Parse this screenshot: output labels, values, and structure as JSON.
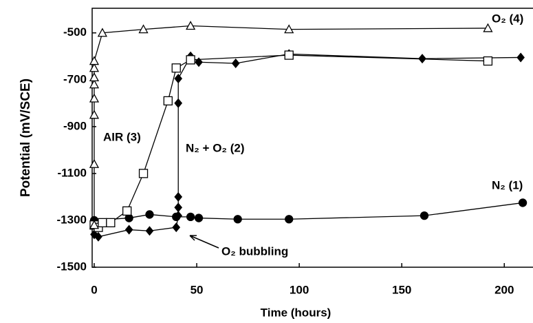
{
  "chart_data": {
    "type": "line",
    "x_label": "Time (hours)",
    "y_label": "Potential (mV/SCE)",
    "xlim": [
      -1,
      214
    ],
    "ylim": [
      -1500,
      -395
    ],
    "xticks": [
      0,
      50,
      100,
      150,
      200
    ],
    "yticks": [
      -500,
      -700,
      -900,
      -1100,
      -1300,
      -1500
    ],
    "series": [
      {
        "name": "N₂ (1)",
        "color": "#000000",
        "marker": "circle",
        "filled": true,
        "x": [
          0,
          17,
          27,
          40,
          47,
          51,
          70,
          95,
          161,
          209
        ],
        "values": [
          -1300,
          -1290,
          -1275,
          -1285,
          -1285,
          -1290,
          -1295,
          -1295,
          -1280,
          -1225
        ]
      },
      {
        "name": "N₂ + O₂ (2)",
        "color": "#000000",
        "marker": "diamond",
        "filled": true,
        "x": [
          0,
          2,
          17,
          27,
          40,
          41,
          41,
          41,
          41,
          41,
          47,
          51,
          69,
          95,
          160,
          208
        ],
        "values": [
          -1360,
          -1370,
          -1340,
          -1345,
          -1330,
          -1280,
          -1245,
          -1200,
          -800,
          -695,
          -600,
          -625,
          -630,
          -590,
          -610,
          -605
        ]
      },
      {
        "name": "AIR (3)",
        "color": "#000000",
        "marker": "square",
        "filled": false,
        "x": [
          0,
          2,
          4,
          8,
          16,
          24,
          36,
          40,
          47,
          95,
          192
        ],
        "values": [
          -1320,
          -1330,
          -1310,
          -1310,
          -1260,
          -1100,
          -790,
          -650,
          -615,
          -595,
          -620
        ]
      },
      {
        "name": "O₂ (4)",
        "color": "#000000",
        "marker": "triangle",
        "filled": false,
        "x": [
          0,
          0,
          0,
          0,
          0,
          0,
          0,
          0,
          4,
          24,
          47,
          95,
          192
        ],
        "values": [
          -1320,
          -1060,
          -850,
          -780,
          -720,
          -690,
          -650,
          -620,
          -500,
          -485,
          -470,
          -485,
          -480
        ]
      }
    ],
    "annotation": "O₂ bubbling"
  }
}
